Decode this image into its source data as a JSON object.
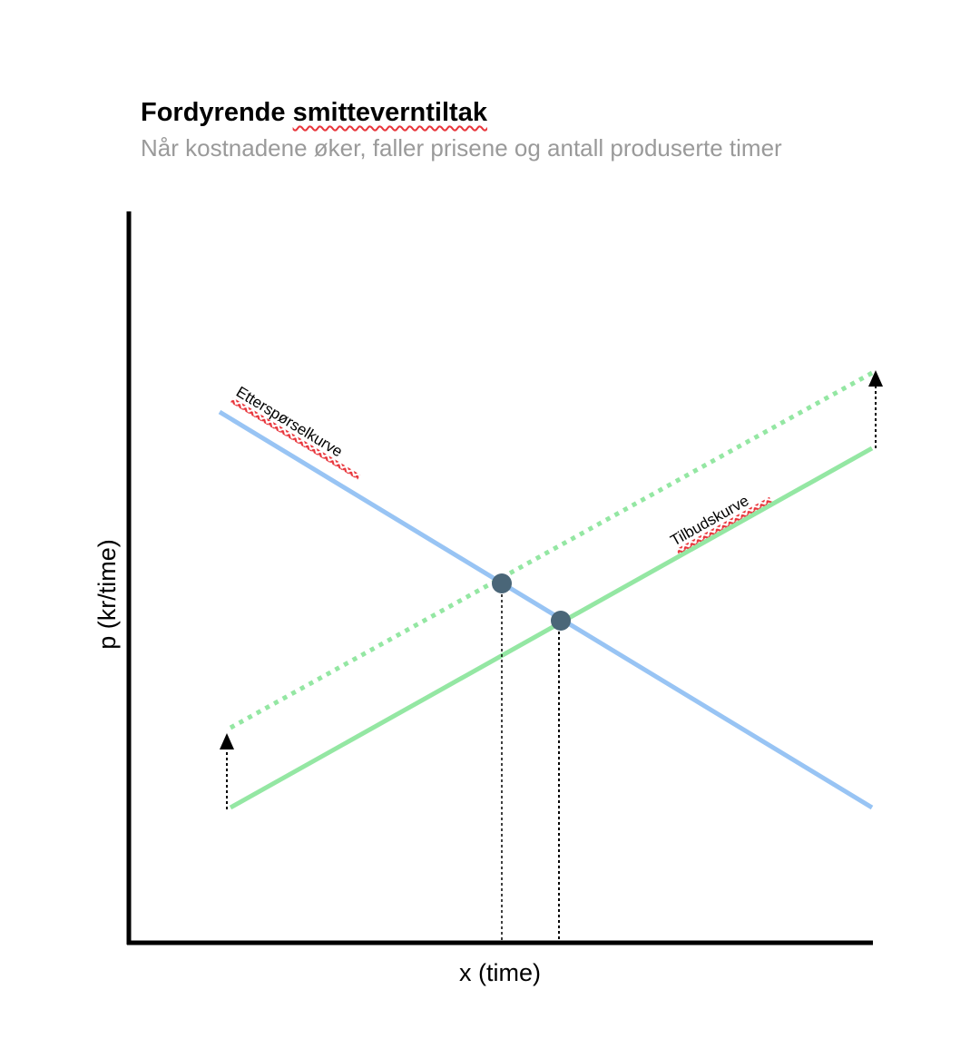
{
  "title": {
    "part1": "Fordyrende ",
    "part2": "smitteverntiltak"
  },
  "subtitle": "Når kostnadene øker, faller prisene og antall produserte timer",
  "axes": {
    "x_label": "x (time)",
    "y_label": "p (kr/time)"
  },
  "curves": {
    "demand_label": "Etterspørselkurve",
    "supply_label": "Tilbudskurve"
  },
  "colors": {
    "demand": "#98c4f4",
    "supply": "#94e7a3",
    "point": "#4a6678",
    "spellcheck": "#e8343a"
  }
}
